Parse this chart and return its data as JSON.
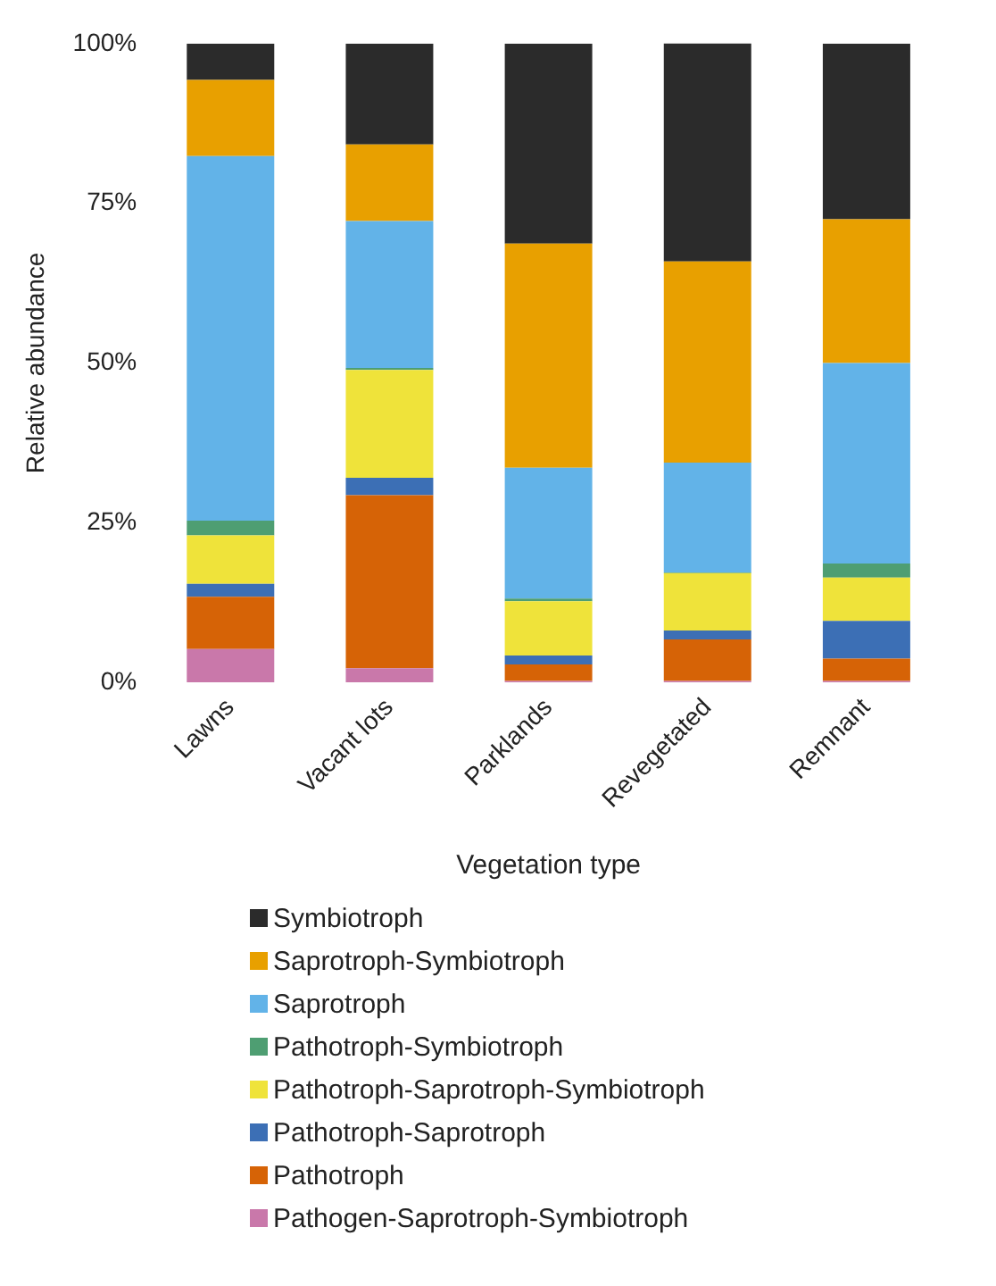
{
  "chart_data": {
    "type": "bar",
    "stacked": true,
    "xlabel": "Vegetation type",
    "ylabel": "Relative abundance",
    "categories": [
      "Lawns",
      "Vacant lots",
      "Parklands",
      "Revegetated",
      "Remnant"
    ],
    "ylim": [
      0,
      100
    ],
    "yticks": [
      {
        "value": 0,
        "label": "0%"
      },
      {
        "value": 25,
        "label": "25%"
      },
      {
        "value": 50,
        "label": "50%"
      },
      {
        "value": 75,
        "label": "75%"
      },
      {
        "value": 100,
        "label": "100%"
      }
    ],
    "grid": false,
    "legend": "bottom",
    "series": [
      {
        "name": "Pathogen-Saprotroph-Symbiotroph",
        "color": "#c978aa",
        "values": [
          5.2,
          2.2,
          0.2,
          0.2,
          0.2
        ]
      },
      {
        "name": "Pathotroph",
        "color": "#d66306",
        "values": [
          8.2,
          27.1,
          2.6,
          6.5,
          3.5
        ]
      },
      {
        "name": "Pathotroph-Saprotroph",
        "color": "#3c6fb5",
        "values": [
          2.0,
          2.7,
          1.4,
          1.4,
          5.9
        ]
      },
      {
        "name": "Pathotroph-Saprotroph-Symbiotroph",
        "color": "#efe33a",
        "values": [
          7.6,
          16.9,
          8.5,
          9.0,
          6.8
        ]
      },
      {
        "name": "Pathotroph-Symbiotroph",
        "color": "#4e9e72",
        "values": [
          2.3,
          0.3,
          0.4,
          0.1,
          2.2
        ]
      },
      {
        "name": "Saprotroph",
        "color": "#62b3e8",
        "values": [
          57.1,
          23.0,
          20.5,
          17.2,
          31.4
        ]
      },
      {
        "name": "Saprotroph-Symbiotroph",
        "color": "#e8a000",
        "values": [
          11.9,
          12.0,
          35.1,
          31.5,
          22.5
        ]
      },
      {
        "name": "Symbiotroph",
        "color": "#2b2b2b",
        "values": [
          5.7,
          15.8,
          31.3,
          34.2,
          27.5
        ]
      }
    ]
  }
}
